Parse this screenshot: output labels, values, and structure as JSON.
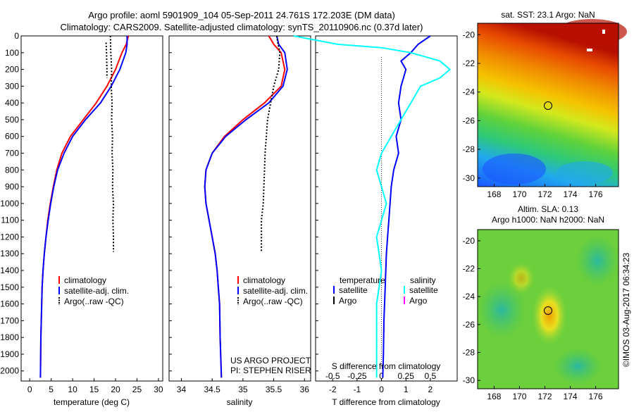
{
  "title": {
    "line1": "Argo profile: aoml 5901909_104 05-Sep-2011 24.761S 172.203E (DM data)",
    "line2": "Climatology: CARS2009. Satellite-adjusted climatology: synTS_20110906.nc (0.37d later)"
  },
  "colors": {
    "climatology": "#ff0000",
    "satellite": "#0000ff",
    "argo": "#000000",
    "sal_satellite": "#00ffff",
    "sal_argo": "#ff00ff"
  },
  "depth_ticks": [
    "0",
    "100",
    "200",
    "300",
    "400",
    "500",
    "600",
    "700",
    "800",
    "900",
    "1000",
    "1100",
    "1200",
    "1300",
    "1400",
    "1500",
    "1600",
    "1700",
    "1800",
    "1900",
    "2000"
  ],
  "chart_data": [
    {
      "type": "line",
      "panel": "temperature",
      "xlabel": "temperature (deg C)",
      "ylabel": "",
      "xlim": [
        -2,
        31
      ],
      "ylim": [
        2060,
        0
      ],
      "y_reversed": true,
      "xticks": [
        "0",
        "5",
        "10",
        "15",
        "20",
        "25",
        "30"
      ],
      "legend": [
        "climatology",
        "satellite-adj. clim.",
        "Argo(..raw -QC)"
      ],
      "series": [
        {
          "name": "climatology",
          "x": [
            23,
            22.5,
            21.5,
            20,
            18,
            15.5,
            12.5,
            9.5,
            7.5,
            6.3,
            5.5,
            4.8,
            4.2,
            3.8,
            3.4,
            3.1,
            2.9,
            2.8,
            2.7,
            2.6,
            2.5
          ],
          "y": [
            0,
            50,
            100,
            200,
            300,
            400,
            500,
            600,
            700,
            800,
            900,
            1000,
            1100,
            1200,
            1300,
            1400,
            1500,
            1600,
            1700,
            1800,
            2040
          ]
        },
        {
          "name": "satellite-adj. clim.",
          "x": [
            22.7,
            22.7,
            22.4,
            21,
            19,
            16.5,
            13,
            10,
            8,
            6.5,
            5.6,
            4.9,
            4.3,
            3.8,
            3.4,
            3.1,
            2.9,
            2.8,
            2.7,
            2.6,
            2.5
          ],
          "y": [
            0,
            50,
            100,
            200,
            300,
            400,
            500,
            600,
            700,
            800,
            900,
            1000,
            1100,
            1200,
            1300,
            1400,
            1500,
            1600,
            1700,
            1800,
            2040
          ]
        },
        {
          "name": "Argo(..raw -QC)",
          "x": [
            18.8,
            18.9,
            19.1,
            19.0,
            19.2,
            19.1,
            19.3,
            19.2,
            19.4,
            19.3,
            19.5,
            19.4,
            19.5,
            19.5
          ],
          "y": [
            0,
            100,
            200,
            300,
            400,
            500,
            600,
            700,
            800,
            900,
            1000,
            1100,
            1200,
            1290
          ]
        },
        {
          "name": "Argo(..raw -QC)",
          "x": [
            17.8,
            17.9,
            18.0,
            18.0
          ],
          "y": [
            40,
            100,
            200,
            250
          ]
        }
      ]
    },
    {
      "type": "line",
      "panel": "salinity",
      "xlabel": "salinity",
      "ylabel": "",
      "xlim": [
        33.8,
        36.1
      ],
      "ylim": [
        2060,
        0
      ],
      "y_reversed": true,
      "xticks": [
        "34",
        "34.5",
        "35",
        "35.5",
        "36"
      ],
      "legend": [
        "climatology",
        "satellite-adj. clim.",
        "Argo(..raw -QC)"
      ],
      "series": [
        {
          "name": "climatology",
          "x": [
            35.42,
            35.5,
            35.62,
            35.68,
            35.62,
            35.35,
            35.0,
            34.7,
            34.5,
            34.4,
            34.38,
            34.4,
            34.45,
            34.5,
            34.55,
            34.58,
            34.6,
            34.62,
            34.63,
            34.65
          ],
          "y": [
            0,
            50,
            100,
            200,
            300,
            400,
            500,
            600,
            700,
            800,
            900,
            1000,
            1100,
            1200,
            1300,
            1400,
            1500,
            1600,
            1800,
            2040
          ]
        },
        {
          "name": "satellite-adj. clim.",
          "x": [
            35.55,
            35.58,
            35.68,
            35.72,
            35.65,
            35.42,
            35.05,
            34.72,
            34.5,
            34.4,
            34.38,
            34.4,
            34.45,
            34.5,
            34.55,
            34.58,
            34.6,
            34.62,
            34.63,
            34.65
          ],
          "y": [
            0,
            50,
            100,
            200,
            300,
            400,
            500,
            600,
            700,
            800,
            900,
            1000,
            1100,
            1200,
            1300,
            1400,
            1500,
            1600,
            1800,
            2040
          ]
        },
        {
          "name": "Argo(..raw -QC)",
          "x": [
            35.55,
            35.57,
            35.6,
            35.58,
            35.5,
            35.45,
            35.4,
            35.38,
            35.36,
            35.35,
            35.34,
            35.33,
            35.3,
            35.3,
            35.3
          ],
          "y": [
            0,
            50,
            100,
            200,
            300,
            400,
            500,
            600,
            700,
            800,
            900,
            1000,
            1100,
            1200,
            1290
          ]
        }
      ]
    },
    {
      "type": "line",
      "panel": "difference",
      "xlabel": "T difference from climatology",
      "x2label": "S difference from climatology",
      "ylabel": "",
      "xlim": [
        -2.7,
        3.1
      ],
      "ylim": [
        2060,
        0
      ],
      "y_reversed": true,
      "xticks": [
        "-2",
        "-1",
        "0",
        "1",
        "2"
      ],
      "x2ticks": [
        "-0.5",
        "-0.25",
        "0",
        "0.25",
        "0.5"
      ],
      "legend_left": {
        "heading": "temperature",
        "items": [
          "satellite",
          "Argo"
        ]
      },
      "legend_right": {
        "heading": "salinity",
        "items": [
          "satellite",
          "Argo"
        ]
      },
      "series": [
        {
          "name": "temperature satellite",
          "x": [
            2.0,
            1.5,
            1.2,
            0.8,
            1.0,
            0.9,
            0.8,
            0.7,
            0.8,
            0.6,
            0.7,
            0.5,
            0.4,
            0.35,
            0.3,
            0.25,
            0.2,
            0.15,
            0.1,
            0.08,
            0.05
          ],
          "y": [
            0,
            50,
            100,
            150,
            200,
            250,
            300,
            400,
            500,
            600,
            700,
            800,
            900,
            1000,
            1100,
            1200,
            1300,
            1500,
            1700,
            1900,
            2040
          ]
        },
        {
          "name": "salinity satellite",
          "x": [
            -0.9,
            -0.45,
            0,
            0.3,
            0.6,
            0.7,
            0.6,
            0.4,
            0.3,
            0.2,
            0.1,
            0.0,
            -0.05,
            0.0,
            0.05,
            0.0,
            -0.05,
            0.0,
            -0.05,
            -0.05,
            -0.05
          ],
          "y": [
            0,
            50,
            70,
            100,
            150,
            200,
            250,
            300,
            400,
            500,
            600,
            700,
            800,
            900,
            1000,
            1100,
            1200,
            1400,
            1600,
            1800,
            2040
          ]
        }
      ]
    }
  ],
  "maps": [
    {
      "title": "sat. SST: 23.1 Argo: NaN",
      "yticks": [
        "-20",
        "-22",
        "-24",
        "-26",
        "-28",
        "-30"
      ],
      "xticks": [
        "168",
        "170",
        "172",
        "174",
        "176"
      ]
    },
    {
      "title1": "Altim. SLA: 0.13",
      "title2": "Argo h1000: NaN h2000: NaN",
      "yticks": [
        "-20",
        "-22",
        "-24",
        "-26",
        "-28",
        "-30"
      ],
      "xticks": [
        "168",
        "170",
        "172",
        "174",
        "176"
      ]
    }
  ],
  "annotations": {
    "project1": "US ARGO PROJECT",
    "project2": "PI: STEPHEN RISER",
    "credit": "©IMOS 03-Aug-2017 06:34:23"
  }
}
